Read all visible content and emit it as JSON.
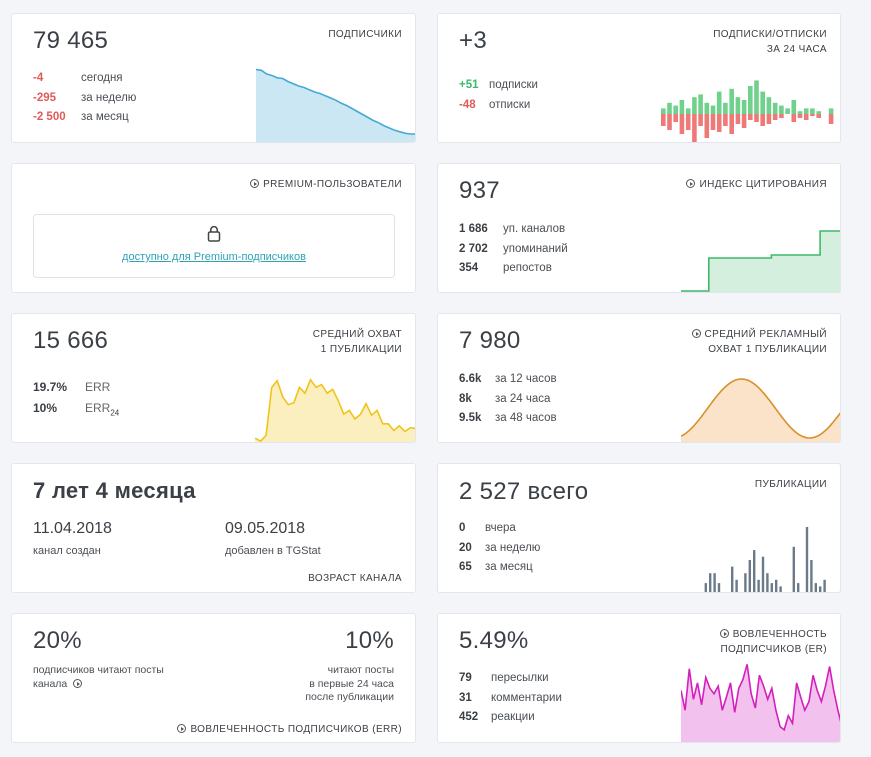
{
  "subscribers": {
    "value": "79 465",
    "caption": "ПОДПИСЧИКИ",
    "rows": [
      {
        "v": "-4",
        "label": "сегодня"
      },
      {
        "v": "-295",
        "label": "за неделю"
      },
      {
        "v": "-2 500",
        "label": "за месяц"
      }
    ],
    "chart_data": {
      "type": "area",
      "color": "#45a9d6",
      "values": [
        98,
        97,
        92,
        90,
        87,
        86,
        82,
        79,
        76,
        74,
        71,
        68,
        66,
        63,
        60,
        57,
        53,
        50,
        46,
        42,
        38,
        34,
        30,
        27,
        23,
        20,
        17,
        15,
        13,
        12,
        12
      ]
    }
  },
  "subs_unsubs": {
    "value": "+3",
    "caption1": "ПОДПИСКИ/ОТПИСКИ",
    "caption2": "ЗА 24 ЧАСА",
    "rows": [
      {
        "v": "+51",
        "label": "подписки"
      },
      {
        "v": "-48",
        "label": "отписки"
      }
    ],
    "chart_data": {
      "type": "bar",
      "positive": [
        2,
        4,
        3,
        5,
        2,
        6,
        7,
        4,
        3,
        8,
        4,
        9,
        6,
        5,
        10,
        12,
        8,
        6,
        4,
        3,
        2,
        5,
        1,
        2,
        2,
        1,
        0,
        2
      ],
      "negative": [
        6,
        8,
        4,
        10,
        8,
        14,
        6,
        12,
        8,
        9,
        6,
        10,
        5,
        7,
        3,
        4,
        6,
        5,
        3,
        2,
        0,
        4,
        2,
        3,
        1,
        2,
        0,
        5
      ]
    }
  },
  "premium": {
    "caption": "PREMIUM-ПОЛЬЗОВАТЕЛИ",
    "lock_icon": "lock-icon",
    "link": "доступно для Premium-подписчиков"
  },
  "citation": {
    "value": "937",
    "caption": "ИНДЕКС ЦИТИРОВАНИЯ",
    "rows": [
      {
        "v": "1 686",
        "label": "уп. каналов"
      },
      {
        "v": "2 702",
        "label": "упоминаний"
      },
      {
        "v": "354",
        "label": "репостов"
      }
    ],
    "chart_data": {
      "type": "step",
      "color": "#3fb86a",
      "values": [
        0,
        0,
        0,
        0,
        0.55,
        0.55,
        0.55,
        0.55,
        0.55,
        0.55,
        0.55,
        0.55,
        0.55,
        0.6,
        0.6,
        0.6,
        0.6,
        0.6,
        0.6,
        0.6,
        1.0,
        1.0,
        1.0,
        1.0
      ]
    }
  },
  "avg_reach": {
    "value": "15 666",
    "caption1": "СРЕДНИЙ ОХВАТ",
    "caption2": "1 ПУБЛИКАЦИИ",
    "rows": [
      {
        "v": "19.7%",
        "label": "ERR"
      },
      {
        "v": "10%",
        "label": "ERR",
        "sub": "24"
      }
    ],
    "chart_data": {
      "type": "area",
      "color": "#f0c419",
      "values": [
        5,
        2,
        8,
        58,
        65,
        48,
        40,
        42,
        58,
        52,
        66,
        58,
        61,
        52,
        56,
        44,
        30,
        34,
        25,
        30,
        41,
        29,
        34,
        20,
        20,
        13,
        18,
        12,
        16,
        15
      ]
    }
  },
  "ad_reach": {
    "value": "7 980",
    "caption1": "СРЕДНИЙ РЕКЛАМНЫЙ",
    "caption2": "ОХВАТ 1 ПУБЛИКАЦИИ",
    "rows": [
      {
        "v": "6.6k",
        "label": "за 12 часов"
      },
      {
        "v": "8k",
        "label": "за 24 часа"
      },
      {
        "v": "9.5k",
        "label": "за 48 часов"
      }
    ],
    "chart_data": {
      "type": "sine",
      "color": "#ee9a3a"
    }
  },
  "age": {
    "value": "7 лет 4 месяца",
    "created_date": "11.04.2018",
    "created_label": "канал создан",
    "added_date": "09.05.2018",
    "added_label": "добавлен в TGStat",
    "caption": "ВОЗРАСТ КАНАЛА"
  },
  "publications": {
    "value": "2 527",
    "value_suffix": "всего",
    "caption": "ПУБЛИКАЦИИ",
    "rows": [
      {
        "v": "0",
        "label": "вчера"
      },
      {
        "v": "20",
        "label": "за неделю"
      },
      {
        "v": "65",
        "label": "за месяц"
      }
    ],
    "chart_data": {
      "type": "bar",
      "color": "#6b7a88",
      "values": [
        0,
        0,
        0,
        0,
        3,
        6,
        6,
        3,
        0,
        0,
        8,
        4,
        0,
        6,
        10,
        13,
        4,
        11,
        6,
        3,
        4,
        2,
        0,
        0,
        14,
        3,
        0,
        20,
        10,
        3,
        2,
        4,
        0,
        0,
        0
      ]
    }
  },
  "err": {
    "value1": "20%",
    "label1": "подписчиков читают посты канала",
    "value2": "10%",
    "label2a": "читают посты",
    "label2b": "в первые 24 часа",
    "label2c": "после публикации",
    "caption": "ВОВЛЕЧЕННОСТЬ ПОДПИСЧИКОВ (ERR)"
  },
  "er": {
    "value": "5.49%",
    "caption1": "ВОВЛЕЧЕННОСТЬ",
    "caption2": "ПОДПИСЧИКОВ (ER)",
    "rows": [
      {
        "v": "79",
        "label": "пересылки"
      },
      {
        "v": "31",
        "label": "комментарии"
      },
      {
        "v": "452",
        "label": "реакции"
      }
    ],
    "chart_data": {
      "type": "area",
      "color": "#d41fbd",
      "values": [
        48,
        30,
        68,
        40,
        55,
        35,
        60,
        50,
        45,
        52,
        30,
        42,
        55,
        28,
        50,
        58,
        72,
        45,
        32,
        62,
        52,
        40,
        50,
        30,
        15,
        12,
        25,
        18,
        55,
        42,
        30,
        38,
        62,
        48,
        38,
        52,
        70,
        48,
        30,
        15
      ]
    }
  }
}
